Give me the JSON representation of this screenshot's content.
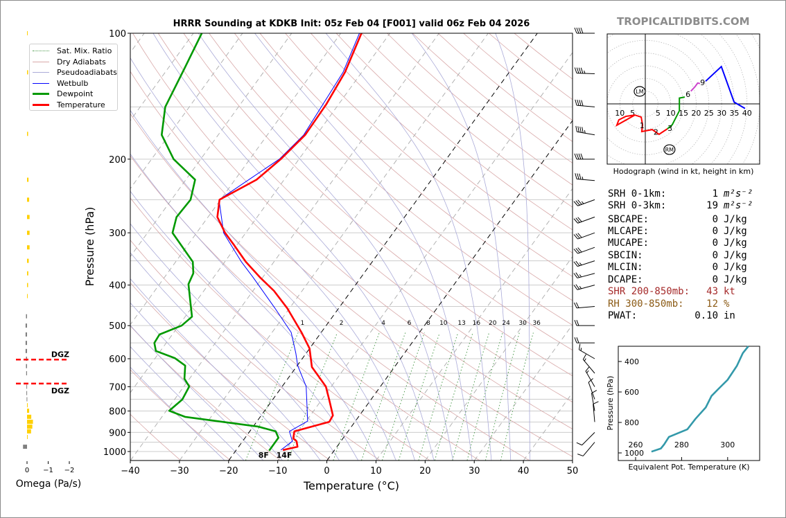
{
  "title": "HRRR Sounding at KDKB Init: 05z Feb 04 [F001] valid 06z Feb 04 2026",
  "watermark": "TROPICALTIDBITS.COM",
  "legend": [
    {
      "label": "Sat. Mix. Ratio",
      "color": "#4c9a4c",
      "style": "dotted"
    },
    {
      "label": "Dry Adiabats",
      "color": "#d8a8a8",
      "style": "solid"
    },
    {
      "label": "Pseudoadiabats",
      "color": "#aaaad8",
      "style": "solid"
    },
    {
      "label": "Wetbulb",
      "color": "#0000ff",
      "style": "solid"
    },
    {
      "label": "Dewpoint",
      "color": "#009900",
      "style": "thick"
    },
    {
      "label": "Temperature",
      "color": "#ff0000",
      "style": "thick"
    }
  ],
  "indices": [
    {
      "label": "SRH 0-1km:",
      "value": "1",
      "unit": "m²s⁻²",
      "color": "#000000"
    },
    {
      "label": "SRH 0-3km:",
      "value": "19",
      "unit": "m²s⁻²",
      "color": "#000000"
    },
    {
      "label": "SBCAPE:",
      "value": "0",
      "unit": "J/kg",
      "color": "#000000"
    },
    {
      "label": "MLCAPE:",
      "value": "0",
      "unit": "J/kg",
      "color": "#000000"
    },
    {
      "label": "MUCAPE:",
      "value": "0",
      "unit": "J/kg",
      "color": "#000000"
    },
    {
      "label": "SBCIN:",
      "value": "0",
      "unit": "J/kg",
      "color": "#000000"
    },
    {
      "label": "MLCIN:",
      "value": "0",
      "unit": "J/kg",
      "color": "#000000"
    },
    {
      "label": "DCAPE:",
      "value": "0",
      "unit": "J/kg",
      "color": "#000000"
    },
    {
      "label": "SHR 200-850mb:",
      "value": "43",
      "unit": "kt",
      "color": "#a52a2a"
    },
    {
      "label": "RH 300-850mb:",
      "value": "12",
      "unit": "%",
      "color": "#8b5a14"
    },
    {
      "label": "PWAT:",
      "value": "0.10",
      "unit": "in",
      "color": "#000000"
    }
  ],
  "chart_data": [
    {
      "id": "skewt",
      "type": "line",
      "title": "HRRR Sounding at KDKB Init: 05z Feb 04 [F001] valid 06z Feb 04 2026",
      "xlabel": "Temperature (°C)",
      "ylabel": "Pressure (hPa)",
      "xlim": [
        -40,
        50
      ],
      "ylim": [
        1050,
        100
      ],
      "y_scale": "log",
      "skewed": true,
      "grid": true,
      "xticks": [
        -40,
        -30,
        -20,
        -10,
        0,
        10,
        20,
        30,
        40,
        50
      ],
      "xtick_labels": [
        "−40",
        "−30",
        "−20",
        "−10",
        "0",
        "10",
        "20",
        "30",
        "40",
        "50"
      ],
      "yticks": [
        100,
        200,
        300,
        400,
        500,
        600,
        700,
        800,
        900,
        1000
      ],
      "highlighted_isotherms": [
        -20,
        0
      ],
      "mixing_ratio_labels": [
        1,
        2,
        4,
        6,
        8,
        10,
        13,
        16,
        20,
        24,
        30,
        36
      ],
      "series": [
        {
          "name": "Temperature",
          "color": "#ff0000",
          "points": [
            [
              100,
              -55.8
            ],
            [
              124,
              -53.4
            ],
            [
              148,
              -52.5
            ],
            [
              175,
              -52.3
            ],
            [
              200,
              -53.7
            ],
            [
              224,
              -55.6
            ],
            [
              250,
              -60.2
            ],
            [
              275,
              -58.1
            ],
            [
              300,
              -54.2
            ],
            [
              322,
              -50.4
            ],
            [
              352,
              -45.7
            ],
            [
              383,
              -40.6
            ],
            [
              413,
              -35.7
            ],
            [
              454,
              -30.5
            ],
            [
              519,
              -24.0
            ],
            [
              567,
              -20.0
            ],
            [
              628,
              -16.8
            ],
            [
              652,
              -14.8
            ],
            [
              699,
              -11.1
            ],
            [
              751,
              -8.5
            ],
            [
              820,
              -5.4
            ],
            [
              849,
              -5.2
            ],
            [
              895,
              -10.9
            ],
            [
              930,
              -10.1
            ],
            [
              945,
              -9.0
            ],
            [
              974,
              -8.0
            ],
            [
              992,
              -10.5
            ]
          ]
        },
        {
          "name": "Dewpoint",
          "color": "#009900",
          "points": [
            [
              100,
              -88.3
            ],
            [
              122,
              -86.6
            ],
            [
              150,
              -84.9
            ],
            [
              175,
              -81.5
            ],
            [
              200,
              -75.5
            ],
            [
              224,
              -68.1
            ],
            [
              250,
              -66.1
            ],
            [
              275,
              -66.4
            ],
            [
              300,
              -64.9
            ],
            [
              352,
              -56.5
            ],
            [
              375,
              -54.7
            ],
            [
              398,
              -54.1
            ],
            [
              429,
              -51.8
            ],
            [
              476,
              -48.6
            ],
            [
              500,
              -49.4
            ],
            [
              525,
              -52.6
            ],
            [
              550,
              -52.4
            ],
            [
              575,
              -50.9
            ],
            [
              598,
              -46.0
            ],
            [
              623,
              -42.8
            ],
            [
              670,
              -41.0
            ],
            [
              699,
              -38.9
            ],
            [
              751,
              -38.4
            ],
            [
              799,
              -39.4
            ],
            [
              826,
              -35.3
            ],
            [
              872,
              -18.9
            ],
            [
              895,
              -14.7
            ],
            [
              927,
              -13.2
            ],
            [
              995,
              -13.2
            ]
          ]
        },
        {
          "name": "Wetbulb",
          "color": "#0000ff",
          "points": [
            [
              100,
              -56.2
            ],
            [
              124,
              -53.8
            ],
            [
              175,
              -52.6
            ],
            [
              200,
              -54.0
            ],
            [
              250,
              -60.3
            ],
            [
              300,
              -54.5
            ],
            [
              352,
              -46.6
            ],
            [
              383,
              -42.0
            ],
            [
              454,
              -33.0
            ],
            [
              519,
              -26.1
            ],
            [
              582,
              -22.1
            ],
            [
              623,
              -19.9
            ],
            [
              699,
              -15.1
            ],
            [
              846,
              -9.7
            ],
            [
              895,
              -11.9
            ],
            [
              945,
              -9.85
            ],
            [
              992,
              -10.9
            ]
          ]
        }
      ],
      "surface_labels": {
        "dewpoint": "8F",
        "temperature": "14F"
      },
      "wind_barbs": [
        {
          "p": 100,
          "dir": 270,
          "kt": 40
        },
        {
          "p": 125,
          "dir": 272,
          "kt": 45
        },
        {
          "p": 150,
          "dir": 275,
          "kt": 40
        },
        {
          "p": 175,
          "dir": 280,
          "kt": 45
        },
        {
          "p": 200,
          "dir": 270,
          "kt": 40
        },
        {
          "p": 225,
          "dir": 275,
          "kt": 35
        },
        {
          "p": 250,
          "dir": 250,
          "kt": 35
        },
        {
          "p": 275,
          "dir": 250,
          "kt": 30
        },
        {
          "p": 300,
          "dir": 250,
          "kt": 30
        },
        {
          "p": 325,
          "dir": 250,
          "kt": 30
        },
        {
          "p": 350,
          "dir": 252,
          "kt": 25
        },
        {
          "p": 375,
          "dir": 255,
          "kt": 25
        },
        {
          "p": 400,
          "dir": 255,
          "kt": 25
        },
        {
          "p": 450,
          "dir": 265,
          "kt": 20
        },
        {
          "p": 500,
          "dir": 270,
          "kt": 20
        },
        {
          "p": 550,
          "dir": 270,
          "kt": 20
        },
        {
          "p": 600,
          "dir": 300,
          "kt": 15
        },
        {
          "p": 650,
          "dir": 320,
          "kt": 15
        },
        {
          "p": 700,
          "dir": 330,
          "kt": 15
        },
        {
          "p": 750,
          "dir": 340,
          "kt": 10
        },
        {
          "p": 800,
          "dir": 350,
          "kt": 10
        },
        {
          "p": 850,
          "dir": 355,
          "kt": 10
        },
        {
          "p": 900,
          "dir": 225,
          "kt": 10
        },
        {
          "p": 950,
          "dir": 220,
          "kt": 10
        }
      ]
    },
    {
      "id": "omega",
      "type": "bar",
      "xlabel": "Omega (Pa/s)",
      "xlim": [
        0.56,
        -2
      ],
      "xticks": [
        0,
        -1,
        -2
      ],
      "xtick_labels": [
        "0",
        "−1",
        "−2"
      ],
      "colors": {
        "negative": "#ffd000",
        "positive": "#808080"
      },
      "bars": [
        [
          100,
          -0.03
        ],
        [
          124,
          -0.05
        ],
        [
          174,
          -0.05
        ],
        [
          224,
          -0.07
        ],
        [
          250,
          -0.1
        ],
        [
          275,
          -0.12
        ],
        [
          300,
          -0.12
        ],
        [
          325,
          -0.12
        ],
        [
          350,
          -0.08
        ],
        [
          375,
          -0.06
        ],
        [
          400,
          -0.05
        ],
        [
          425,
          -0.03
        ],
        [
          475,
          0.05
        ],
        [
          500,
          0.07
        ],
        [
          525,
          0.07
        ],
        [
          550,
          0.07
        ],
        [
          575,
          0.07
        ],
        [
          600,
          0.05
        ],
        [
          625,
          0.05
        ],
        [
          650,
          0.04
        ],
        [
          700,
          0.03
        ],
        [
          725,
          0.03
        ],
        [
          750,
          0.02
        ],
        [
          775,
          -0.02
        ],
        [
          799,
          -0.1
        ],
        [
          826,
          -0.2
        ],
        [
          849,
          -0.28
        ],
        [
          872,
          -0.25
        ],
        [
          895,
          -0.19
        ],
        [
          923,
          -0.02
        ],
        [
          974,
          0.19
        ]
      ],
      "dgz_levels": [
        603,
        688
      ],
      "dgz_label": "DGZ"
    },
    {
      "id": "hodograph",
      "type": "line",
      "xlabel": "Hodograph (wind in kt, height in km)",
      "ring_step_kt": 5,
      "ring_labels_left": [
        10,
        5
      ],
      "ring_labels_right": [
        5,
        10,
        15,
        20,
        25,
        30,
        35,
        40
      ],
      "segments": [
        {
          "color": "#ff0000",
          "points": [
            [
              -4.1,
              -4.4
            ],
            [
              -11.2,
              -8.4
            ],
            [
              -10.4,
              -6.3
            ],
            [
              -7.6,
              -4.9
            ],
            [
              -4.1,
              -4.4
            ],
            [
              -1.6,
              -5.2
            ],
            [
              -1.1,
              -8.2
            ],
            [
              -1.4,
              -10.9
            ],
            [
              2.7,
              -10.1
            ],
            [
              5.4,
              -12.0
            ],
            [
              8.7,
              -9.8
            ]
          ]
        },
        {
          "color": "#009900",
          "points": [
            [
              8.7,
              -9.8
            ],
            [
              10.6,
              -8.2
            ],
            [
              13.4,
              -2.7
            ],
            [
              13.4,
              2.3
            ],
            [
              15.5,
              2.7
            ]
          ]
        },
        {
          "color": "#cc44cc",
          "points": [
            [
              17.9,
              5.0
            ],
            [
              19.6,
              6.8
            ],
            [
              20.6,
              8.2
            ],
            [
              21.5,
              8.0
            ]
          ]
        },
        {
          "color": "#0000ff",
          "points": [
            [
              23.7,
              8.9
            ],
            [
              29.9,
              14.7
            ],
            [
              34.9,
              0.7
            ],
            [
              39.2,
              -1.8
            ]
          ]
        }
      ],
      "height_labels": [
        {
          "label": "1",
          "u": -1.3,
          "v": -8.4
        },
        {
          "label": "2",
          "u": 4.2,
          "v": -11
        },
        {
          "label": "3",
          "u": 9.7,
          "v": -9.5
        },
        {
          "label": "6",
          "u": 16.8,
          "v": 3.8
        },
        {
          "label": "9",
          "u": 22.5,
          "v": 8.5
        }
      ],
      "storm_motion": [
        {
          "label": "LM",
          "u": -2.2,
          "v": 4.9
        },
        {
          "label": "RM",
          "u": 9.5,
          "v": -18.0
        }
      ]
    },
    {
      "id": "theta_e",
      "type": "line",
      "xlabel": "Equivalent Pot. Temperature (K)",
      "ylabel": "Pressure (hPa)",
      "xlim": [
        252.5,
        314
      ],
      "ylim": [
        1050,
        300
      ],
      "xticks": [
        260,
        280,
        300
      ],
      "yticks": [
        400,
        600,
        800,
        1000
      ],
      "color": "#3399aa",
      "points": [
        [
          992,
          266.9
        ],
        [
          971,
          271.0
        ],
        [
          944,
          272.4
        ],
        [
          895,
          274.5
        ],
        [
          845,
          282.5
        ],
        [
          777,
          286.0
        ],
        [
          701,
          290.5
        ],
        [
          626,
          293.0
        ],
        [
          580,
          296.0
        ],
        [
          520,
          300.0
        ],
        [
          429,
          304.0
        ],
        [
          345,
          306.6
        ],
        [
          300,
          309.0
        ]
      ]
    }
  ]
}
